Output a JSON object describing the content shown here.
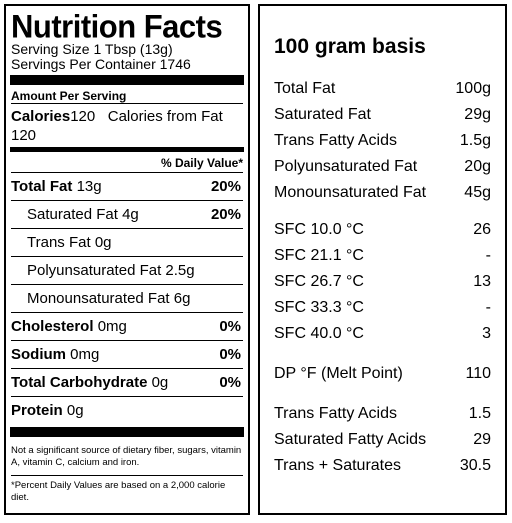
{
  "nutrition_facts": {
    "title": "Nutrition Facts",
    "serving_size": "Serving Size 1 Tbsp (13g)",
    "servings_per_container": "Servings Per Container 1746",
    "amount_per_serving": "Amount Per Serving",
    "calories_label": "Calories",
    "calories_value": "120",
    "calories_from_fat": "Calories from Fat 120",
    "daily_value_head": "% Daily Value*",
    "items": [
      {
        "label": "Total Fat",
        "amount": "13g",
        "pct": "20%"
      },
      {
        "label": "Saturated Fat",
        "amount": "4g",
        "pct": "20%"
      },
      {
        "label": "Trans Fat",
        "amount": "0g",
        "pct": ""
      },
      {
        "label": "Polyunsaturated Fat",
        "amount": "2.5g",
        "pct": ""
      },
      {
        "label": "Monounsaturated Fat",
        "amount": "6g",
        "pct": ""
      },
      {
        "label": "Cholesterol",
        "amount": "0mg",
        "pct": "0%"
      },
      {
        "label": "Sodium",
        "amount": "0mg",
        "pct": "0%"
      },
      {
        "label": "Total Carbohydrate",
        "amount": "0g",
        "pct": "0%"
      },
      {
        "label": "Protein",
        "amount": "0g",
        "pct": ""
      }
    ],
    "note": "Not a significant source of dietary fiber, sugars, vitamin A, vitamin C, calcium and iron.",
    "footnote": "*Percent Daily Values are based on a 2,000  calorie diet."
  },
  "basis": {
    "title": "100 gram basis",
    "fats": [
      {
        "label": "Total Fat",
        "value": "100g"
      },
      {
        "label": "Saturated Fat",
        "value": "29g"
      },
      {
        "label": "Trans Fatty Acids",
        "value": "1.5g"
      },
      {
        "label": "Polyunsaturated Fat",
        "value": "20g"
      },
      {
        "label": "Monounsaturated Fat",
        "value": "45g"
      }
    ],
    "sfc": [
      {
        "label": "SFC 10.0 °C",
        "value": "26"
      },
      {
        "label": "SFC 21.1 °C",
        "value": "-"
      },
      {
        "label": "SFC 26.7 °C",
        "value": "13"
      },
      {
        "label": "SFC 33.3 °C",
        "value": "-"
      },
      {
        "label": "SFC 40.0 °C",
        "value": "3"
      }
    ],
    "melt": {
      "label": "DP °F (Melt Point)",
      "value": "110"
    },
    "totals": [
      {
        "label": "Trans Fatty Acids",
        "value": "1.5"
      },
      {
        "label": "Saturated Fatty Acids",
        "value": "29"
      },
      {
        "label": "Trans + Saturates",
        "value": "30.5"
      }
    ]
  }
}
